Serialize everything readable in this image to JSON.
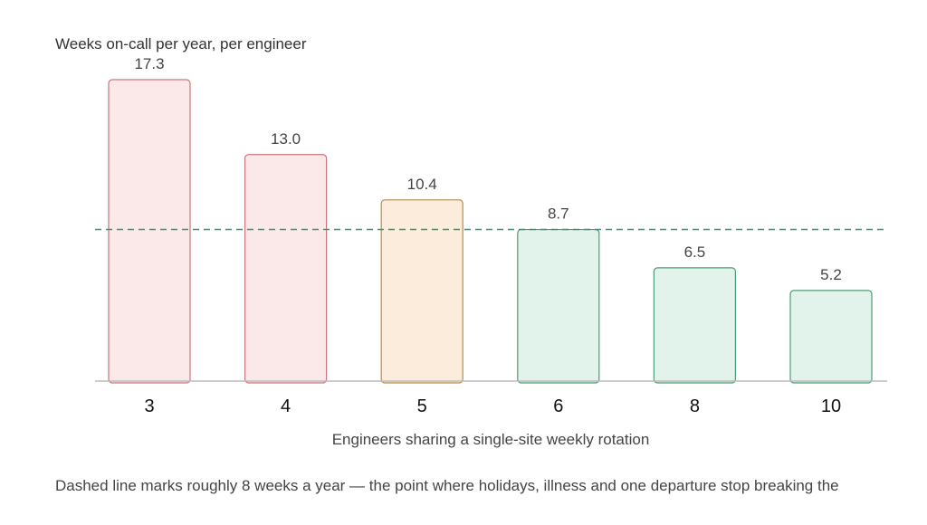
{
  "chart_data": {
    "type": "bar",
    "ylabel": "Weeks on-call per year, per engineer",
    "xlabel": "Engineers sharing a single-site weekly rotation",
    "categories": [
      "3",
      "4",
      "5",
      "6",
      "8",
      "10"
    ],
    "values": [
      17.3,
      13.0,
      10.4,
      8.7,
      6.5,
      5.2
    ],
    "value_labels": [
      "17.3",
      "13.0",
      "10.4",
      "8.7",
      "6.5",
      "5.2"
    ],
    "ylim": [
      0,
      17.3
    ],
    "grid": false,
    "reference_line": {
      "value": 8.7,
      "style": "dashed",
      "color": "#2e9a6b"
    },
    "bar_status": [
      "high",
      "high",
      "borderline",
      "ok",
      "ok",
      "ok"
    ],
    "status_colors": {
      "high": {
        "fill": "#fbe9ea",
        "stroke": "#c9777c"
      },
      "borderline": {
        "fill": "#fbecdb",
        "stroke": "#b98a52"
      },
      "ok": {
        "fill": "#e1f3ea",
        "stroke": "#4f9b77"
      }
    },
    "axis_color": "#bbbbbb",
    "footnote": "Dashed line marks roughly 8 weeks a year — the point where holidays, illness and one departure stop breaking the"
  }
}
